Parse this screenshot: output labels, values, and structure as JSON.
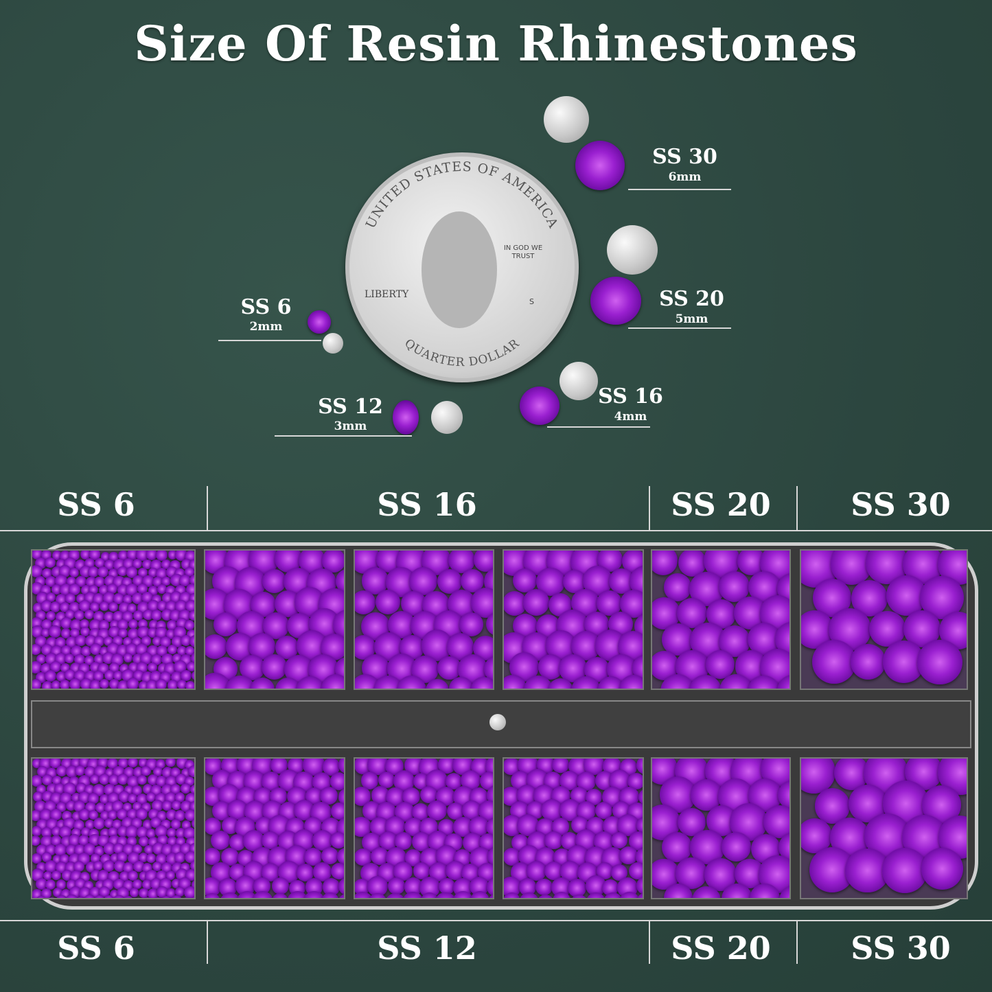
{
  "title": "Size Of Resin Rhinestones",
  "colors": {
    "background": "#2e4a42",
    "gem": "#9a20d0",
    "text": "#ffffff"
  },
  "coin": {
    "top_text": "UNITED STATES OF AMERICA",
    "motto": "IN GOD WE TRUST",
    "left_text": "LIBERTY",
    "mint_mark": "S",
    "bottom_text": "QUARTER DOLLAR"
  },
  "size_chart": [
    {
      "size": "SS 30",
      "mm": "6mm"
    },
    {
      "size": "SS 20",
      "mm": "5mm"
    },
    {
      "size": "SS 16",
      "mm": "4mm"
    },
    {
      "size": "SS 12",
      "mm": "3mm"
    },
    {
      "size": "SS 6",
      "mm": "2mm"
    }
  ],
  "tray": {
    "top_labels": [
      "SS 6",
      "SS 16",
      "SS 20",
      "SS 30"
    ],
    "bottom_labels": [
      "SS 6",
      "SS 12",
      "SS 20",
      "SS 30"
    ]
  }
}
